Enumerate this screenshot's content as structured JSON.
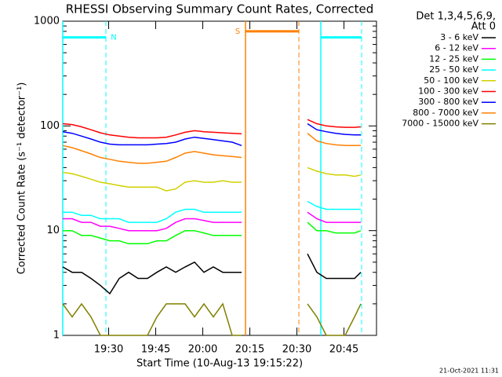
{
  "chart_data": {
    "type": "line",
    "title": "RHESSI Observing Summary Count Rates, Corrected",
    "xlabel": "Start Time (10-Aug-13 19:15:22)",
    "ylabel": "Corrected Count Rate (s⁻¹ detector⁻¹)",
    "legend_title": [
      "Det 1,3,4,5,6,9,",
      "Att 0"
    ],
    "footer": "21-Oct-2021 11:31",
    "log_y": true,
    "xlim": [
      0,
      100
    ],
    "ylim": [
      1,
      1000
    ],
    "xticks": [
      {
        "value": 14.63,
        "label": "19:30"
      },
      {
        "value": 29.63,
        "label": "19:45"
      },
      {
        "value": 44.63,
        "label": "20:00"
      },
      {
        "value": 59.63,
        "label": "20:15"
      },
      {
        "value": 74.63,
        "label": "20:30"
      },
      {
        "value": 89.63,
        "label": "20:45"
      }
    ],
    "yticks": [
      1,
      10,
      100,
      1000
    ],
    "intervals": [
      {
        "label": "N",
        "color": "#00ffff",
        "start": 0,
        "end": 13.75,
        "level": 700
      },
      {
        "label": "S",
        "color": "#ff8000",
        "start": 58.25,
        "end": 75.25,
        "level": 800
      },
      {
        "color": "#00ffff",
        "start": 82.25,
        "end": 95.25,
        "level": 700
      }
    ],
    "x": [
      0,
      3,
      6,
      9,
      12,
      15,
      18,
      21,
      24,
      27,
      30,
      33,
      36,
      39,
      42,
      45,
      48,
      51,
      54,
      57,
      60,
      78,
      81,
      84,
      87,
      90,
      93,
      95
    ],
    "series": [
      {
        "name": "3 - 6 keV",
        "color": "#000000",
        "values": [
          4.5,
          4,
          4,
          3.5,
          3,
          2.5,
          3.5,
          4,
          3.5,
          3.5,
          4,
          4.5,
          4,
          4.5,
          5,
          4,
          4.5,
          4,
          4,
          4,
          null,
          6,
          4,
          3.5,
          3.5,
          3.5,
          3.5,
          4
        ]
      },
      {
        "name": "6 - 12 keV",
        "color": "#ff00ff",
        "values": [
          13,
          13,
          12,
          12,
          11,
          11,
          10.5,
          10,
          10,
          10,
          10,
          10.5,
          12,
          13,
          13,
          12.5,
          12,
          12,
          12,
          12,
          null,
          15,
          13,
          12,
          12,
          12,
          12,
          12
        ]
      },
      {
        "name": "12 - 25 keV",
        "color": "#00ff00",
        "values": [
          10,
          10,
          9,
          9,
          8.5,
          8,
          8,
          7.5,
          7.5,
          7.5,
          8,
          8,
          9,
          10,
          10,
          9.5,
          9,
          9,
          9,
          9,
          null,
          12,
          10,
          10,
          9.5,
          9.5,
          9.5,
          10
        ]
      },
      {
        "name": "25 - 50 keV",
        "color": "#00ffff",
        "values": [
          15,
          15,
          14,
          14,
          13,
          13,
          13,
          12,
          12,
          12,
          12,
          13,
          15,
          16,
          16,
          15,
          15,
          15,
          15,
          15,
          null,
          19,
          17,
          16,
          16,
          16,
          16,
          16
        ]
      },
      {
        "name": "50 - 100 keV",
        "color": "#d0d000",
        "values": [
          36,
          35,
          33,
          31,
          29,
          28,
          27,
          26,
          26,
          26,
          26,
          24,
          25,
          29,
          30,
          29,
          29,
          30,
          29,
          29,
          null,
          40,
          37,
          35,
          34,
          34,
          33,
          34
        ]
      },
      {
        "name": "100 - 300 keV",
        "color": "#ff0000",
        "values": [
          105,
          103,
          98,
          92,
          86,
          82,
          80,
          78,
          77,
          77,
          77,
          78,
          82,
          87,
          90,
          88,
          87,
          86,
          85,
          84,
          null,
          115,
          105,
          100,
          98,
          97,
          97,
          98
        ]
      },
      {
        "name": "300 - 800 keV",
        "color": "#0000ff",
        "values": [
          88,
          85,
          80,
          75,
          70,
          67,
          66,
          66,
          66,
          66,
          67,
          68,
          70,
          75,
          78,
          76,
          74,
          72,
          70,
          65,
          null,
          105,
          92,
          88,
          85,
          83,
          82,
          82
        ]
      },
      {
        "name": "800 - 7000 keV",
        "color": "#ff8000",
        "values": [
          65,
          62,
          58,
          54,
          50,
          48,
          46,
          45,
          44,
          44,
          45,
          46,
          50,
          55,
          57,
          55,
          53,
          52,
          51,
          50,
          null,
          85,
          72,
          68,
          66,
          65,
          65,
          65
        ]
      },
      {
        "name": "7000 - 15000 keV",
        "color": "#808000",
        "values": [
          2,
          1.5,
          2,
          1.5,
          1,
          1,
          1,
          1,
          1,
          1,
          1.5,
          2,
          2,
          2,
          1.5,
          2,
          1.5,
          2,
          1,
          1,
          null,
          2,
          1.5,
          1,
          1,
          1,
          1.5,
          2
        ]
      }
    ]
  }
}
